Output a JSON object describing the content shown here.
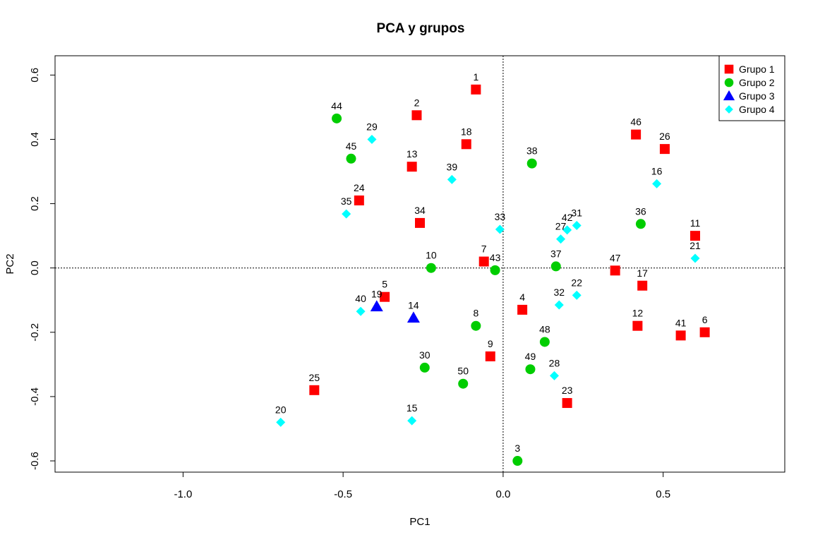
{
  "chart_data": {
    "type": "scatter",
    "title": "PCA y grupos",
    "xlabel": "PC1",
    "ylabel": "PC2",
    "xlim": [
      -1.4,
      0.88
    ],
    "ylim": [
      -0.635,
      0.66
    ],
    "xticks": [
      -1.0,
      -0.5,
      0.0,
      0.5
    ],
    "xtick_labels": [
      "-1.0",
      "-0.5",
      "0.0",
      "0.5"
    ],
    "yticks": [
      -0.6,
      -0.4,
      -0.2,
      0.0,
      0.2,
      0.4,
      0.6
    ],
    "ytick_labels": [
      "-0.6",
      "-0.4",
      "-0.2",
      "0.0",
      "0.2",
      "0.4",
      "0.6"
    ],
    "reference_lines": {
      "x": 0,
      "y": 0,
      "style": "dotted"
    },
    "legend_position": "top-right",
    "series": [
      {
        "name": "Grupo 1",
        "marker": "square",
        "color": "#ff0000",
        "points": [
          {
            "label": "1",
            "x": -0.085,
            "y": 0.555
          },
          {
            "label": "2",
            "x": -0.27,
            "y": 0.475
          },
          {
            "label": "18",
            "x": -0.115,
            "y": 0.385
          },
          {
            "label": "13",
            "x": -0.285,
            "y": 0.315
          },
          {
            "label": "24",
            "x": -0.45,
            "y": 0.21
          },
          {
            "label": "34",
            "x": -0.26,
            "y": 0.14
          },
          {
            "label": "46",
            "x": 0.415,
            "y": 0.415
          },
          {
            "label": "26",
            "x": 0.505,
            "y": 0.37
          },
          {
            "label": "11",
            "x": 0.6,
            "y": 0.1
          },
          {
            "label": "7",
            "x": -0.06,
            "y": 0.02
          },
          {
            "label": "47",
            "x": 0.35,
            "y": -0.008
          },
          {
            "label": "17",
            "x": 0.435,
            "y": -0.055
          },
          {
            "label": "5",
            "x": -0.37,
            "y": -0.09
          },
          {
            "label": "4",
            "x": 0.06,
            "y": -0.13
          },
          {
            "label": "12",
            "x": 0.42,
            "y": -0.18
          },
          {
            "label": "41",
            "x": 0.555,
            "y": -0.21
          },
          {
            "label": "6",
            "x": 0.63,
            "y": -0.2
          },
          {
            "label": "9",
            "x": -0.04,
            "y": -0.275
          },
          {
            "label": "25",
            "x": -0.59,
            "y": -0.38
          },
          {
            "label": "23",
            "x": 0.2,
            "y": -0.42
          }
        ]
      },
      {
        "name": "Grupo 2",
        "marker": "circle",
        "color": "#00cd00",
        "points": [
          {
            "label": "44",
            "x": -0.52,
            "y": 0.465
          },
          {
            "label": "45",
            "x": -0.475,
            "y": 0.34
          },
          {
            "label": "38",
            "x": 0.09,
            "y": 0.325
          },
          {
            "label": "36",
            "x": 0.43,
            "y": 0.137
          },
          {
            "label": "10",
            "x": -0.225,
            "y": 0.0
          },
          {
            "label": "43",
            "x": -0.025,
            "y": -0.007
          },
          {
            "label": "37",
            "x": 0.165,
            "y": 0.005
          },
          {
            "label": "8",
            "x": -0.085,
            "y": -0.18
          },
          {
            "label": "48",
            "x": 0.13,
            "y": -0.23
          },
          {
            "label": "30",
            "x": -0.245,
            "y": -0.31
          },
          {
            "label": "49",
            "x": 0.085,
            "y": -0.315
          },
          {
            "label": "50",
            "x": -0.125,
            "y": -0.36
          },
          {
            "label": "3",
            "x": 0.045,
            "y": -0.6
          }
        ]
      },
      {
        "name": "Grupo 3",
        "marker": "triangle",
        "color": "#0000ff",
        "points": [
          {
            "label": "19",
            "x": -0.395,
            "y": -0.12
          },
          {
            "label": "14",
            "x": -0.28,
            "y": -0.155
          }
        ]
      },
      {
        "name": "Grupo 4",
        "marker": "diamond",
        "color": "#00ffff",
        "points": [
          {
            "label": "29",
            "x": -0.41,
            "y": 0.4
          },
          {
            "label": "39",
            "x": -0.16,
            "y": 0.275
          },
          {
            "label": "16",
            "x": 0.48,
            "y": 0.262
          },
          {
            "label": "35",
            "x": -0.49,
            "y": 0.168
          },
          {
            "label": "33",
            "x": -0.01,
            "y": 0.12
          },
          {
            "label": "42",
            "x": 0.2,
            "y": 0.118
          },
          {
            "label": "31",
            "x": 0.23,
            "y": 0.132
          },
          {
            "label": "27",
            "x": 0.18,
            "y": 0.09
          },
          {
            "label": "21",
            "x": 0.6,
            "y": 0.03
          },
          {
            "label": "40",
            "x": -0.445,
            "y": -0.135
          },
          {
            "label": "32",
            "x": 0.175,
            "y": -0.115
          },
          {
            "label": "22",
            "x": 0.23,
            "y": -0.085
          },
          {
            "label": "28",
            "x": 0.16,
            "y": -0.335
          },
          {
            "label": "15",
            "x": -0.285,
            "y": -0.475
          },
          {
            "label": "20",
            "x": -0.695,
            "y": -0.48
          }
        ]
      }
    ]
  }
}
